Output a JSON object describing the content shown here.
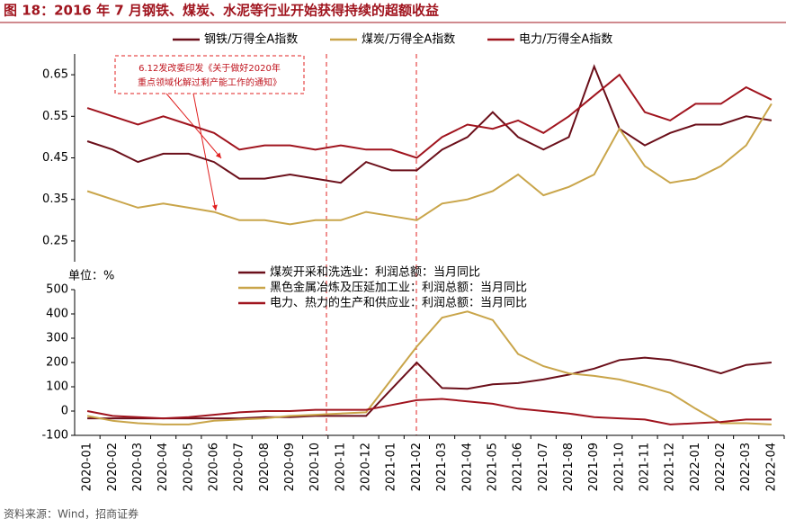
{
  "title": "图 18：2016 年 7 月钢铁、煤炭、水泥等行业开始获得持续的超额收益",
  "source": "资料来源：Wind，招商证券",
  "chart_data": [
    {
      "type": "line",
      "annotation": [
        "6.12发改委印发《关于做好2020年",
        "重点领域化解过剩产能工作的通知》"
      ],
      "ylim": [
        0.2,
        0.7
      ],
      "yticks": [
        0.25,
        0.35,
        0.45,
        0.55,
        0.65
      ],
      "series": [
        {
          "name": "钢铁/万得全A指数",
          "color": "#6b0f1a",
          "values": [
            0.49,
            0.47,
            0.44,
            0.46,
            0.46,
            0.44,
            0.4,
            0.4,
            0.41,
            0.4,
            0.39,
            0.44,
            0.42,
            0.42,
            0.47,
            0.5,
            0.56,
            0.5,
            0.47,
            0.5,
            0.67,
            0.52,
            0.48,
            0.51,
            0.53,
            0.53,
            0.55,
            0.54
          ]
        },
        {
          "name": "煤炭/万得全A指数",
          "color": "#c9a54a",
          "values": [
            0.37,
            0.35,
            0.33,
            0.34,
            0.33,
            0.32,
            0.3,
            0.3,
            0.29,
            0.3,
            0.3,
            0.32,
            0.31,
            0.3,
            0.34,
            0.35,
            0.37,
            0.41,
            0.36,
            0.38,
            0.41,
            0.52,
            0.43,
            0.39,
            0.4,
            0.43,
            0.48,
            0.58
          ]
        },
        {
          "name": "电力/万得全A指数",
          "color": "#a0141e",
          "values": [
            0.57,
            0.55,
            0.53,
            0.55,
            0.53,
            0.51,
            0.47,
            0.48,
            0.48,
            0.47,
            0.48,
            0.47,
            0.47,
            0.45,
            0.5,
            0.53,
            0.52,
            0.54,
            0.51,
            0.55,
            0.6,
            0.65,
            0.56,
            0.54,
            0.58,
            0.58,
            0.62,
            0.59
          ]
        }
      ]
    },
    {
      "type": "line",
      "unit_label": "单位：%",
      "categories": [
        "2020-01",
        "2020-02",
        "2020-03",
        "2020-04",
        "2020-05",
        "2020-06",
        "2020-07",
        "2020-08",
        "2020-09",
        "2020-10",
        "2020-11",
        "2020-12",
        "2021-01",
        "2021-02",
        "2021-03",
        "2021-04",
        "2021-05",
        "2021-06",
        "2021-07",
        "2021-08",
        "2021-09",
        "2021-10",
        "2021-11",
        "2021-12",
        "2022-01",
        "2022-02",
        "2022-03",
        "2022-04"
      ],
      "ylim": [
        -100,
        500
      ],
      "yticks": [
        -100,
        0,
        100,
        200,
        300,
        400,
        500
      ],
      "series": [
        {
          "name": "煤炭开采和洗选业：利润总额：当月同比",
          "color": "#6b0f1a",
          "values": [
            -30,
            -30,
            -30,
            -30,
            -30,
            -30,
            -30,
            -25,
            -25,
            -20,
            -20,
            -20,
            90,
            200,
            95,
            92,
            110,
            115,
            130,
            150,
            175,
            210,
            220,
            210,
            185,
            155,
            190,
            200
          ]
        },
        {
          "name": "黑色金属冶炼及压延加工业：利润总额：当月同比",
          "color": "#c9a54a",
          "values": [
            -20,
            -40,
            -50,
            -55,
            -55,
            -40,
            -35,
            -30,
            -20,
            -15,
            -10,
            -5,
            130,
            265,
            385,
            410,
            375,
            235,
            185,
            155,
            145,
            130,
            105,
            75,
            10,
            -50,
            -50,
            -55
          ]
        },
        {
          "name": "电力、热力的生产和供应业：利润总额：当月同比",
          "color": "#a0141e",
          "values": [
            0,
            -20,
            -25,
            -30,
            -25,
            -15,
            -5,
            0,
            0,
            5,
            5,
            5,
            25,
            45,
            50,
            40,
            30,
            10,
            0,
            -10,
            -25,
            -30,
            -35,
            -55,
            -50,
            -45,
            -35,
            -35
          ]
        }
      ]
    }
  ]
}
